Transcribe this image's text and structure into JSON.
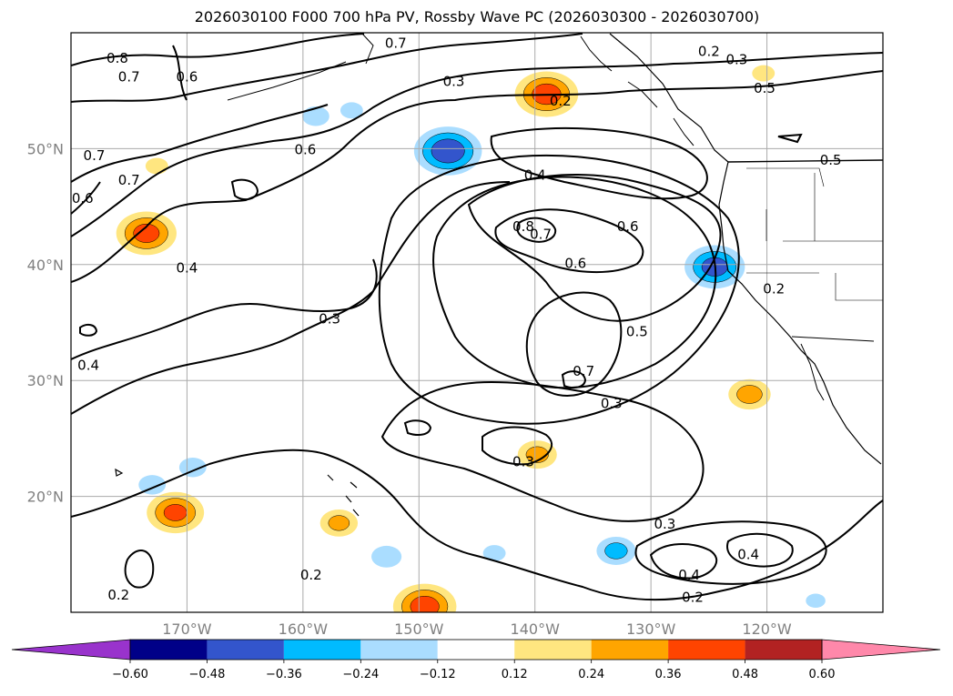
{
  "chart_data": {
    "type": "heatmap",
    "title": "2026030100 F000 700 hPa PV, Rossby Wave PC (2026030300 - 2026030700)",
    "map": {
      "lon_range": [
        -180,
        -110
      ],
      "lat_range": [
        10,
        60
      ],
      "lat_ticks": [
        {
          "lat": 50,
          "label": "50°N"
        },
        {
          "lat": 40,
          "label": "40°N"
        },
        {
          "lat": 30,
          "label": "30°N"
        },
        {
          "lat": 20,
          "label": "20°N"
        }
      ],
      "lon_ticks": [
        {
          "lon": -170,
          "label": "170°W"
        },
        {
          "lon": -160,
          "label": "160°W"
        },
        {
          "lon": -150,
          "label": "150°W"
        },
        {
          "lon": -140,
          "label": "140°W"
        },
        {
          "lon": -130,
          "label": "130°W"
        },
        {
          "lon": -120,
          "label": "120°W"
        }
      ],
      "grid": true
    },
    "colorbar": {
      "extend": "both",
      "tick_labels": [
        "−0.60",
        "−0.48",
        "−0.36",
        "−0.24",
        "−0.12",
        "0.12",
        "0.24",
        "0.36",
        "0.48",
        "0.60"
      ],
      "colors": [
        "#9933cc",
        "#000088",
        "#3355cc",
        "#00bbff",
        "#aaddff",
        "#ffffff",
        "#ffe680",
        "#ffa500",
        "#ff4400",
        "#b22222",
        "#ff88aa"
      ]
    },
    "contour_labels": [
      {
        "text": "0.7",
        "lon": -175.0,
        "lat": 56.2
      },
      {
        "text": "0.6",
        "lon": -170.0,
        "lat": 56.2
      },
      {
        "text": "0.7",
        "lon": -152.0,
        "lat": 59.1
      },
      {
        "text": "0.2",
        "lon": -125.0,
        "lat": 58.4
      },
      {
        "text": "0.3",
        "lon": -122.6,
        "lat": 57.7
      },
      {
        "text": "0.5",
        "lon": -120.2,
        "lat": 55.2
      },
      {
        "text": "0.3",
        "lon": -147.0,
        "lat": 55.8
      },
      {
        "text": "0.2",
        "lon": -137.8,
        "lat": 54.1
      },
      {
        "text": "0.6",
        "lon": -159.8,
        "lat": 49.9
      },
      {
        "text": "0.7",
        "lon": -178.0,
        "lat": 49.4
      },
      {
        "text": "0.7",
        "lon": -175.0,
        "lat": 47.3
      },
      {
        "text": "0.4",
        "lon": -140.0,
        "lat": 47.7
      },
      {
        "text": "0.6",
        "lon": -132.0,
        "lat": 43.3
      },
      {
        "text": "0.8",
        "lon": -141.0,
        "lat": 43.3
      },
      {
        "text": "0.7",
        "lon": -139.5,
        "lat": 42.6
      },
      {
        "text": "0.6",
        "lon": -136.5,
        "lat": 40.1
      },
      {
        "text": "0.4",
        "lon": -170.0,
        "lat": 39.7
      },
      {
        "text": "0.2",
        "lon": -119.4,
        "lat": 37.9
      },
      {
        "text": "0.3",
        "lon": -157.7,
        "lat": 35.3
      },
      {
        "text": "0.5",
        "lon": -131.2,
        "lat": 34.2
      },
      {
        "text": "0.4",
        "lon": -178.5,
        "lat": 31.3
      },
      {
        "text": "0.7",
        "lon": -135.8,
        "lat": 30.8
      },
      {
        "text": "0.3",
        "lon": -133.4,
        "lat": 28.0
      },
      {
        "text": "0.3",
        "lon": -141.0,
        "lat": 23.0
      },
      {
        "text": "0.3",
        "lon": -128.8,
        "lat": 17.6
      },
      {
        "text": "0.4",
        "lon": -126.7,
        "lat": 13.2
      },
      {
        "text": "0.4",
        "lon": -121.6,
        "lat": 15.0
      },
      {
        "text": "0.2",
        "lon": -159.3,
        "lat": 13.2
      },
      {
        "text": "0.2",
        "lon": -126.4,
        "lat": 11.3
      },
      {
        "text": "0.2",
        "lon": -175.9,
        "lat": 11.5
      },
      {
        "text": "0.8",
        "lon": -176.0,
        "lat": 57.8
      },
      {
        "text": "0.6",
        "lon": -179.0,
        "lat": 45.7
      },
      {
        "text": "0.5",
        "lon": -114.5,
        "lat": 49.0
      }
    ],
    "anomalies": [
      {
        "name": "north-pacific-positive",
        "lon": -139.0,
        "lat": 54.7,
        "value": 0.42
      },
      {
        "name": "western-positive",
        "lon": -173.5,
        "lat": 42.7,
        "value": 0.4
      },
      {
        "name": "gulf-of-alaska-negative",
        "lon": -147.5,
        "lat": 49.8,
        "value": -0.45
      },
      {
        "name": "california-negative",
        "lon": -124.5,
        "lat": 39.8,
        "value": -0.4
      },
      {
        "name": "subtropical-positive",
        "lon": -171.0,
        "lat": 18.6,
        "value": 0.38
      },
      {
        "name": "southern-positive",
        "lon": -149.5,
        "lat": 10.5,
        "value": 0.42
      },
      {
        "name": "mexico-coast-positive",
        "lon": -121.5,
        "lat": 28.8,
        "value": 0.28
      },
      {
        "name": "central-positive",
        "lon": -139.8,
        "lat": 23.6,
        "value": 0.26
      },
      {
        "name": "hawaii-positive",
        "lon": -156.9,
        "lat": 17.7,
        "value": 0.25
      },
      {
        "name": "eastern-tropical-negative",
        "lon": -133.0,
        "lat": 15.3,
        "value": -0.26
      },
      {
        "name": "small-positive-west",
        "lon": -172.6,
        "lat": 48.5,
        "value": 0.15
      },
      {
        "name": "small-negative-1",
        "lon": -169.5,
        "lat": 22.5,
        "value": -0.18
      },
      {
        "name": "small-negative-2",
        "lon": -173.0,
        "lat": 21.0,
        "value": -0.18
      },
      {
        "name": "small-negative-3",
        "lon": -152.8,
        "lat": 14.8,
        "value": -0.2
      },
      {
        "name": "small-negative-4",
        "lon": -143.5,
        "lat": 15.1,
        "value": -0.15
      },
      {
        "name": "small-negative-5",
        "lon": -158.9,
        "lat": 52.8,
        "value": -0.18
      },
      {
        "name": "small-negative-6",
        "lon": -155.8,
        "lat": 53.3,
        "value": -0.15
      },
      {
        "name": "small-positive-ne",
        "lon": -120.3,
        "lat": 56.5,
        "value": 0.15
      },
      {
        "name": "small-negative-se",
        "lon": -115.8,
        "lat": 11.0,
        "value": -0.13
      }
    ]
  }
}
